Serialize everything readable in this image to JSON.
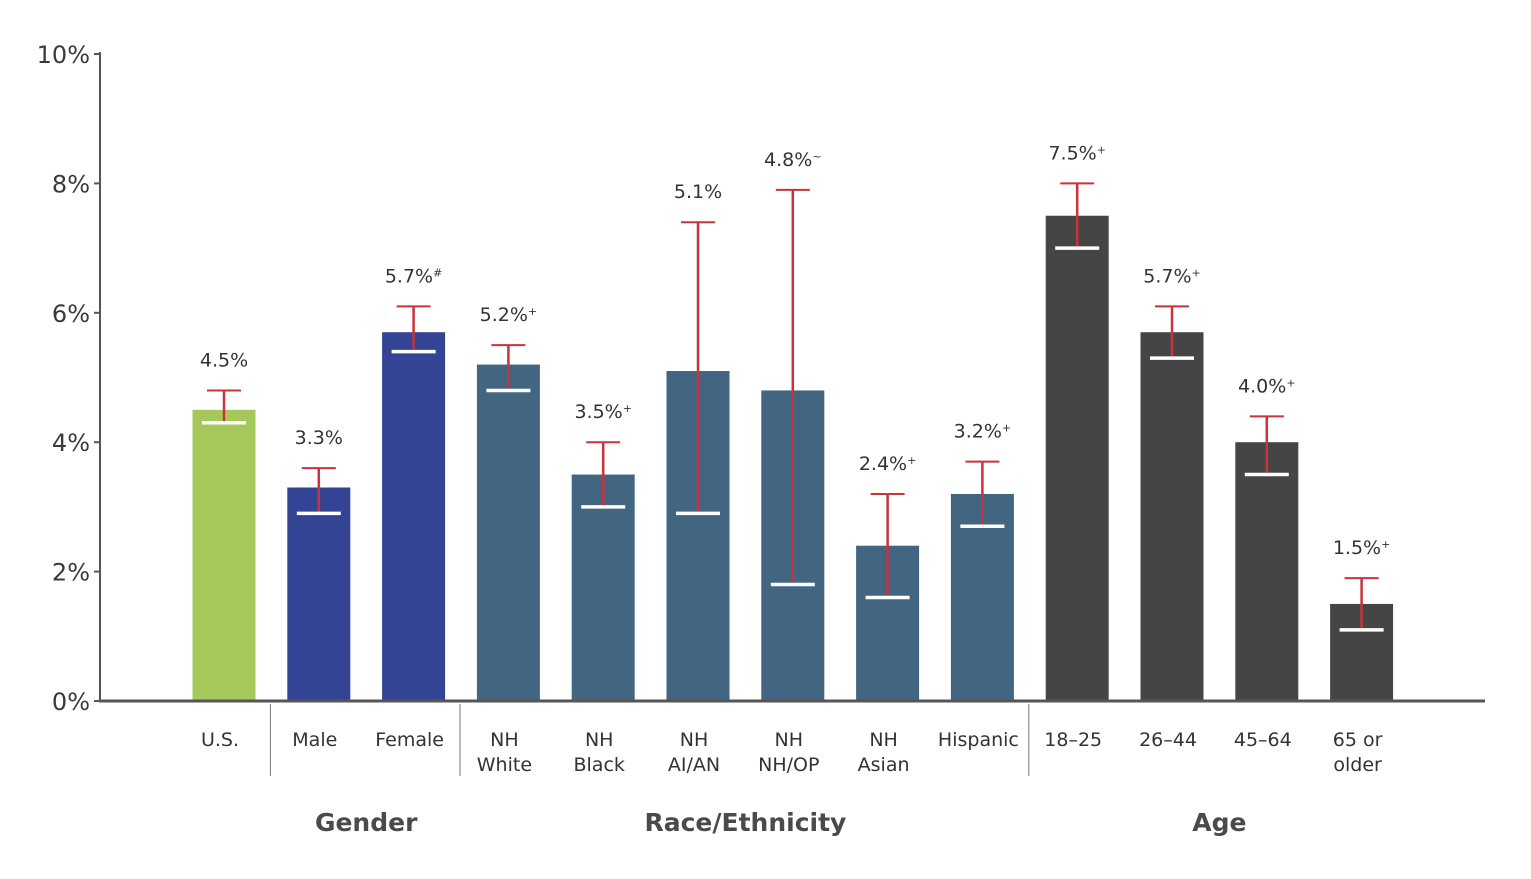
{
  "chart_data": {
    "type": "bar",
    "title": "",
    "xlabel": "",
    "ylabel": "",
    "ylim": [
      0,
      10
    ],
    "y_ticks": [
      0,
      2,
      4,
      6,
      8,
      10
    ],
    "y_tick_labels": [
      "0%",
      "2%",
      "4%",
      "6%",
      "8%",
      "10%"
    ],
    "grid": false,
    "legend": "none",
    "colors": {
      "us": "#a5c85a",
      "gender": "#334495",
      "race": "#426682",
      "age": "#454545",
      "error_bar": "#c8333c",
      "axis": "#555555"
    },
    "bars": [
      {
        "category": [
          "U.S."
        ],
        "value": 4.5,
        "lower": 4.3,
        "upper": 4.8,
        "label": "4.5%",
        "suffix": "",
        "group": "us"
      },
      {
        "category": [
          "Male"
        ],
        "value": 3.3,
        "lower": 2.9,
        "upper": 3.6,
        "label": "3.3%",
        "suffix": "",
        "group": "gender"
      },
      {
        "category": [
          "Female"
        ],
        "value": 5.7,
        "lower": 5.4,
        "upper": 6.1,
        "label": "5.7%",
        "suffix": "#",
        "group": "gender"
      },
      {
        "category": [
          "NH",
          "White"
        ],
        "value": 5.2,
        "lower": 4.8,
        "upper": 5.5,
        "label": "5.2%",
        "suffix": "+",
        "group": "race"
      },
      {
        "category": [
          "NH",
          "Black"
        ],
        "value": 3.5,
        "lower": 3.0,
        "upper": 4.0,
        "label": "3.5%",
        "suffix": "+",
        "group": "race"
      },
      {
        "category": [
          "NH",
          "AI/AN"
        ],
        "value": 5.1,
        "lower": 2.9,
        "upper": 7.4,
        "label": "5.1%",
        "suffix": "",
        "group": "race"
      },
      {
        "category": [
          "NH",
          "NH/OP"
        ],
        "value": 4.8,
        "lower": 1.8,
        "upper": 7.9,
        "label": "4.8%",
        "suffix": "~",
        "group": "race"
      },
      {
        "category": [
          "NH",
          "Asian"
        ],
        "value": 2.4,
        "lower": 1.6,
        "upper": 3.2,
        "label": "2.4%",
        "suffix": "+",
        "group": "race"
      },
      {
        "category": [
          "Hispanic"
        ],
        "value": 3.2,
        "lower": 2.7,
        "upper": 3.7,
        "label": "3.2%",
        "suffix": "+",
        "group": "race"
      },
      {
        "category": [
          "18–25"
        ],
        "value": 7.5,
        "lower": 7.0,
        "upper": 8.0,
        "label": "7.5%",
        "suffix": "+",
        "group": "age"
      },
      {
        "category": [
          "26–44"
        ],
        "value": 5.7,
        "lower": 5.3,
        "upper": 6.1,
        "label": "5.7%",
        "suffix": "+",
        "group": "age"
      },
      {
        "category": [
          "45–64"
        ],
        "value": 4.0,
        "lower": 3.5,
        "upper": 4.4,
        "label": "4.0%",
        "suffix": "+",
        "group": "age"
      },
      {
        "category": [
          "65 or",
          "older"
        ],
        "value": 1.5,
        "lower": 1.1,
        "upper": 1.9,
        "label": "1.5%",
        "suffix": "+",
        "group": "age"
      }
    ],
    "groups": [
      {
        "label": "Gender",
        "first": 1,
        "last": 2
      },
      {
        "label": "Race/Ethnicity",
        "first": 3,
        "last": 8
      },
      {
        "label": "Age",
        "first": 9,
        "last": 12
      }
    ]
  }
}
